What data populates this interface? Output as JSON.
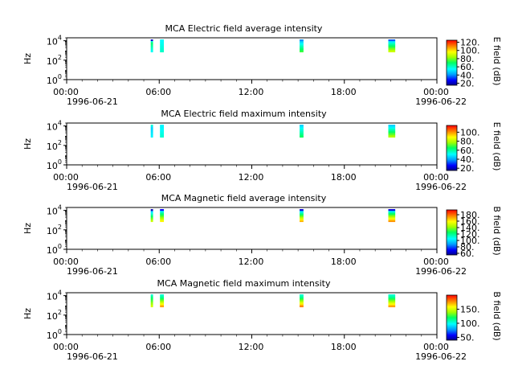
{
  "chart_data": [
    {
      "type": "heatmap",
      "title": "MCA  Electric field average intensity",
      "ylabel": "Hz",
      "yscale": "log",
      "ylim": [
        1,
        20000
      ],
      "y_ticks": [
        {
          "exp": "0"
        },
        {
          "exp": "2"
        },
        {
          "exp": "4"
        }
      ],
      "x_ticks": [
        "00:00",
        "06:00",
        "12:00",
        "18:00",
        "00:00"
      ],
      "x_dates": {
        "start": "1996-06-21",
        "end": "1996-06-22"
      },
      "colorbar": {
        "label": "E field (dB)",
        "range": [
          15,
          125
        ],
        "ticks": [
          20,
          40,
          60,
          80,
          100,
          120
        ],
        "tick_labels": [
          "20.",
          "40.",
          "60.",
          "80.",
          "100.",
          "120."
        ]
      },
      "bursts": [
        {
          "start_hour": 5.45,
          "end_hour": 5.6,
          "low_db": 55,
          "high_db": 70,
          "top_db": 22
        },
        {
          "start_hour": 6.05,
          "end_hour": 6.3,
          "low_db": 60,
          "high_db": 55,
          "top_db": 55
        },
        {
          "start_hour": 15.1,
          "end_hour": 15.35,
          "low_db": 75,
          "high_db": 50,
          "top_db": 40
        },
        {
          "start_hour": 20.85,
          "end_hour": 21.3,
          "low_db": 90,
          "high_db": 55,
          "top_db": 35
        }
      ]
    },
    {
      "type": "heatmap",
      "title": "MCA  Electric field maximum intensity",
      "ylabel": "Hz",
      "yscale": "log",
      "ylim": [
        1,
        20000
      ],
      "y_ticks": [
        {
          "exp": "0"
        },
        {
          "exp": "2"
        },
        {
          "exp": "4"
        }
      ],
      "x_ticks": [
        "00:00",
        "06:00",
        "12:00",
        "18:00",
        "00:00"
      ],
      "x_dates": {
        "start": "1996-06-21",
        "end": "1996-06-22"
      },
      "colorbar": {
        "label": "E field (dB)",
        "range": [
          15,
          115
        ],
        "ticks": [
          20,
          40,
          60,
          80,
          100
        ],
        "tick_labels": [
          "20.",
          "40.",
          "60.",
          "80.",
          "100."
        ]
      },
      "bursts": [
        {
          "start_hour": 5.45,
          "end_hour": 5.6,
          "low_db": 50,
          "high_db": 45,
          "top_db": 55
        },
        {
          "start_hour": 6.05,
          "end_hour": 6.3,
          "low_db": 55,
          "high_db": 50,
          "top_db": 50
        },
        {
          "start_hour": 15.1,
          "end_hour": 15.35,
          "low_db": 65,
          "high_db": 50,
          "top_db": 45
        },
        {
          "start_hour": 20.85,
          "end_hour": 21.3,
          "low_db": 80,
          "high_db": 50,
          "top_db": 45
        }
      ]
    },
    {
      "type": "heatmap",
      "title": "MCA  Magnetic field average intensity",
      "ylabel": "Hz",
      "yscale": "log",
      "ylim": [
        1,
        20000
      ],
      "y_ticks": [
        {
          "exp": "0"
        },
        {
          "exp": "2"
        },
        {
          "exp": "4"
        }
      ],
      "x_ticks": [
        "00:00",
        "06:00",
        "12:00",
        "18:00",
        "00:00"
      ],
      "x_dates": {
        "start": "1996-06-21",
        "end": "1996-06-22"
      },
      "colorbar": {
        "label": "B field (dB)",
        "range": [
          55,
          195
        ],
        "ticks": [
          60,
          80,
          100,
          120,
          140,
          160,
          180
        ],
        "tick_labels": [
          "60.",
          "80.",
          "100.",
          "120.",
          "140.",
          "160.",
          "180."
        ]
      },
      "bursts": [
        {
          "start_hour": 5.45,
          "end_hour": 5.6,
          "low_db": 150,
          "high_db": 100,
          "top_db": 60
        },
        {
          "start_hour": 6.05,
          "end_hour": 6.3,
          "low_db": 160,
          "high_db": 110,
          "top_db": 70
        },
        {
          "start_hour": 15.1,
          "end_hour": 15.35,
          "low_db": 170,
          "high_db": 105,
          "top_db": 65
        },
        {
          "start_hour": 20.85,
          "end_hour": 21.3,
          "low_db": 175,
          "high_db": 110,
          "top_db": 65
        }
      ]
    },
    {
      "type": "heatmap",
      "title": "MCA  Magnetic field maximum intensity",
      "ylabel": "Hz",
      "yscale": "log",
      "ylim": [
        1,
        20000
      ],
      "y_ticks": [
        {
          "exp": "0"
        },
        {
          "exp": "2"
        },
        {
          "exp": "4"
        }
      ],
      "x_ticks": [
        "00:00",
        "06:00",
        "12:00",
        "18:00",
        "00:00"
      ],
      "x_dates": {
        "start": "1996-06-21",
        "end": "1996-06-22"
      },
      "colorbar": {
        "label": "B field (dB)",
        "range": [
          40,
          200
        ],
        "ticks": [
          50,
          100,
          150
        ],
        "tick_labels": [
          "50.",
          "100.",
          "150."
        ]
      },
      "bursts": [
        {
          "start_hour": 5.45,
          "end_hour": 5.6,
          "low_db": 150,
          "high_db": 115,
          "top_db": 105
        },
        {
          "start_hour": 6.05,
          "end_hour": 6.3,
          "low_db": 175,
          "high_db": 110,
          "top_db": 105
        },
        {
          "start_hour": 15.1,
          "end_hour": 15.35,
          "low_db": 180,
          "high_db": 110,
          "top_db": 105
        },
        {
          "start_hour": 20.85,
          "end_hour": 21.3,
          "low_db": 175,
          "high_db": 110,
          "top_db": 105
        }
      ]
    }
  ]
}
